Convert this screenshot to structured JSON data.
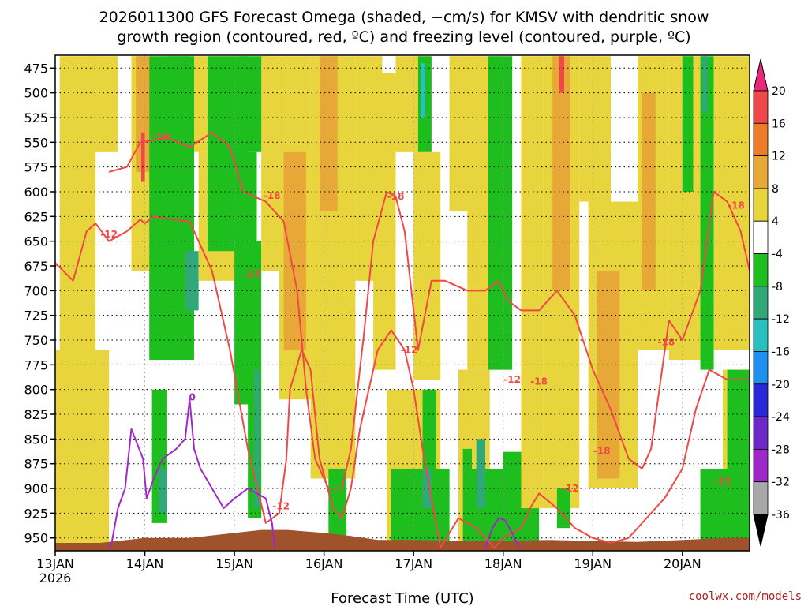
{
  "chart_data": {
    "type": "heatmap",
    "title_lines": [
      "2026011300 GFS Forecast Omega (shaded, −cm/s) for KMSV with dendritic snow",
      "growth region (contoured, red, ºC) and freezing level (contoured, purple, ºC)"
    ],
    "xlabel": "Forecast Time (UTC)",
    "credit": "coolwx.com/models",
    "x_start_label": "13JAN",
    "x_year_label": "2026",
    "x_ticks": [
      {
        "day": 0,
        "label": ""
      },
      {
        "day": 1,
        "label": "14JAN"
      },
      {
        "day": 2,
        "label": "15JAN"
      },
      {
        "day": 3,
        "label": "16JAN"
      },
      {
        "day": 4,
        "label": "17JAN"
      },
      {
        "day": 5,
        "label": "18JAN"
      },
      {
        "day": 6,
        "label": "19JAN"
      },
      {
        "day": 7,
        "label": "20JAN"
      }
    ],
    "xlim_days": [
      0,
      7.75
    ],
    "y_ticks": [
      475,
      500,
      525,
      550,
      575,
      600,
      625,
      650,
      675,
      700,
      725,
      750,
      775,
      800,
      825,
      850,
      875,
      900,
      925,
      950
    ],
    "ylim": [
      963,
      462
    ],
    "colorbar": {
      "labels": [
        20,
        16,
        12,
        8,
        4,
        -4,
        -8,
        -12,
        -16,
        -20,
        -24,
        -28,
        -32,
        -36
      ],
      "colors": [
        "#e8287a",
        "#f04848",
        "#ee7c28",
        "#e8a838",
        "#e8d43c",
        "#ffffff",
        "#1ebe1e",
        "#30a878",
        "#28c0c0",
        "#1e90f0",
        "#2828d8",
        "#6e28c8",
        "#a028c8",
        "#a8a8a8",
        "#000000"
      ]
    },
    "omega_bands": [
      {
        "d0": 0.05,
        "d1": 0.45,
        "p0": 463,
        "p1": 960,
        "v": 4
      },
      {
        "d0": 0.35,
        "d1": 0.7,
        "p0": 463,
        "p1": 560,
        "v": 4
      },
      {
        "d0": 0.85,
        "d1": 1.1,
        "p0": 463,
        "p1": 680,
        "v": 4
      },
      {
        "d0": 0.9,
        "d1": 1.05,
        "p0": 463,
        "p1": 580,
        "v": 10
      },
      {
        "d0": 0.96,
        "d1": 1.0,
        "p0": 540,
        "p1": 590,
        "v": 16
      },
      {
        "d0": 1.05,
        "d1": 1.45,
        "p0": 600,
        "p1": 720,
        "v": 4
      },
      {
        "d0": 0.0,
        "d1": 0.6,
        "p0": 760,
        "p1": 960,
        "v": 4
      },
      {
        "d0": 1.05,
        "d1": 1.55,
        "p0": 463,
        "p1": 770,
        "v": -6
      },
      {
        "d0": 1.25,
        "d1": 1.5,
        "p0": 463,
        "p1": 600,
        "v": -6
      },
      {
        "d0": 1.08,
        "d1": 1.25,
        "p0": 800,
        "p1": 935,
        "v": -6
      },
      {
        "d0": 1.15,
        "d1": 1.25,
        "p0": 880,
        "p1": 925,
        "v": -10
      },
      {
        "d0": 1.45,
        "d1": 1.6,
        "p0": 660,
        "p1": 720,
        "v": -10
      },
      {
        "d0": 1.55,
        "d1": 2.0,
        "p0": 463,
        "p1": 560,
        "v": 4
      },
      {
        "d0": 1.6,
        "d1": 2.1,
        "p0": 560,
        "p1": 690,
        "v": 4
      },
      {
        "d0": 1.7,
        "d1": 2.15,
        "p0": 463,
        "p1": 660,
        "v": -6
      },
      {
        "d0": 2.0,
        "d1": 2.25,
        "p0": 560,
        "p1": 815,
        "v": -6
      },
      {
        "d0": 2.05,
        "d1": 2.35,
        "p0": 463,
        "p1": 560,
        "v": -6
      },
      {
        "d0": 2.15,
        "d1": 2.3,
        "p0": 650,
        "p1": 930,
        "v": -6
      },
      {
        "d0": 2.22,
        "d1": 2.28,
        "p0": 780,
        "p1": 920,
        "v": -10
      },
      {
        "d0": 2.3,
        "d1": 2.5,
        "p0": 463,
        "p1": 680,
        "v": 4
      },
      {
        "d0": 2.5,
        "d1": 2.85,
        "p0": 463,
        "p1": 810,
        "v": 4
      },
      {
        "d0": 2.55,
        "d1": 2.8,
        "p0": 560,
        "p1": 760,
        "v": 8
      },
      {
        "d0": 2.85,
        "d1": 3.35,
        "p0": 463,
        "p1": 890,
        "v": 4
      },
      {
        "d0": 2.95,
        "d1": 3.15,
        "p0": 463,
        "p1": 620,
        "v": 8
      },
      {
        "d0": 3.35,
        "d1": 3.65,
        "p0": 463,
        "p1": 690,
        "v": 4
      },
      {
        "d0": 3.55,
        "d1": 3.8,
        "p0": 480,
        "p1": 780,
        "v": 4
      },
      {
        "d0": 3.8,
        "d1": 4.1,
        "p0": 463,
        "p1": 560,
        "v": 4
      },
      {
        "d0": 4.05,
        "d1": 4.2,
        "p0": 463,
        "p1": 560,
        "v": -6
      },
      {
        "d0": 4.08,
        "d1": 4.13,
        "p0": 470,
        "p1": 525,
        "v": -16
      },
      {
        "d0": 4.0,
        "d1": 4.3,
        "p0": 560,
        "p1": 790,
        "v": 4
      },
      {
        "d0": 3.05,
        "d1": 3.25,
        "p0": 880,
        "p1": 960,
        "v": -6
      },
      {
        "d0": 3.7,
        "d1": 4.3,
        "p0": 800,
        "p1": 960,
        "v": 4
      },
      {
        "d0": 3.75,
        "d1": 4.4,
        "p0": 880,
        "p1": 960,
        "v": -6
      },
      {
        "d0": 4.1,
        "d1": 4.2,
        "p0": 860,
        "p1": 920,
        "v": -10
      },
      {
        "d0": 4.1,
        "d1": 4.25,
        "p0": 800,
        "p1": 880,
        "v": -6
      },
      {
        "d0": 4.4,
        "d1": 4.95,
        "p0": 463,
        "p1": 620,
        "v": 4
      },
      {
        "d0": 4.6,
        "d1": 5.0,
        "p0": 620,
        "p1": 780,
        "v": 4
      },
      {
        "d0": 4.5,
        "d1": 4.85,
        "p0": 780,
        "p1": 960,
        "v": 4
      },
      {
        "d0": 4.55,
        "d1": 4.65,
        "p0": 860,
        "p1": 960,
        "v": -6
      },
      {
        "d0": 4.6,
        "d1": 5.0,
        "p0": 880,
        "p1": 960,
        "v": -6
      },
      {
        "d0": 4.7,
        "d1": 4.8,
        "p0": 850,
        "p1": 920,
        "v": -12
      },
      {
        "d0": 4.83,
        "d1": 5.1,
        "p0": 463,
        "p1": 780,
        "v": -6
      },
      {
        "d0": 5.0,
        "d1": 5.4,
        "p0": 863,
        "p1": 960,
        "v": -6
      },
      {
        "d0": 5.2,
        "d1": 5.45,
        "p0": 463,
        "p1": 920,
        "v": 4
      },
      {
        "d0": 5.45,
        "d1": 5.85,
        "p0": 463,
        "p1": 920,
        "v": 4
      },
      {
        "d0": 5.55,
        "d1": 5.75,
        "p0": 463,
        "p1": 700,
        "v": 10
      },
      {
        "d0": 5.62,
        "d1": 5.68,
        "p0": 463,
        "p1": 500,
        "v": 16
      },
      {
        "d0": 5.6,
        "d1": 5.75,
        "p0": 900,
        "p1": 940,
        "v": -6
      },
      {
        "d0": 5.85,
        "d1": 6.2,
        "p0": 463,
        "p1": 610,
        "v": 4
      },
      {
        "d0": 5.95,
        "d1": 6.5,
        "p0": 610,
        "p1": 900,
        "v": 4
      },
      {
        "d0": 6.05,
        "d1": 6.3,
        "p0": 680,
        "p1": 890,
        "v": 8
      },
      {
        "d0": 6.5,
        "d1": 6.85,
        "p0": 463,
        "p1": 760,
        "v": 4
      },
      {
        "d0": 6.55,
        "d1": 6.7,
        "p0": 500,
        "p1": 700,
        "v": 8
      },
      {
        "d0": 6.85,
        "d1": 7.25,
        "p0": 463,
        "p1": 770,
        "v": 4
      },
      {
        "d0": 7.0,
        "d1": 7.12,
        "p0": 463,
        "p1": 600,
        "v": -6
      },
      {
        "d0": 7.2,
        "d1": 7.35,
        "p0": 463,
        "p1": 780,
        "v": -6
      },
      {
        "d0": 7.22,
        "d1": 7.28,
        "p0": 463,
        "p1": 520,
        "v": -12
      },
      {
        "d0": 7.35,
        "d1": 7.75,
        "p0": 463,
        "p1": 760,
        "v": 4
      },
      {
        "d0": 7.45,
        "d1": 7.75,
        "p0": 780,
        "p1": 960,
        "v": 4
      },
      {
        "d0": 7.2,
        "d1": 7.75,
        "p0": 880,
        "p1": 960,
        "v": -6
      },
      {
        "d0": 7.5,
        "d1": 7.75,
        "p0": 780,
        "p1": 890,
        "v": -6
      }
    ],
    "contours": [
      {
        "name": "-12",
        "color": "#f04848",
        "x": [
          0,
          0.2,
          0.35,
          0.45,
          0.6,
          0.8,
          0.95,
          1.0,
          1.1,
          1.3,
          1.5,
          1.75,
          1.95,
          2.15,
          2.35,
          2.5,
          2.58,
          2.62,
          2.75,
          2.85,
          2.95,
          3.1,
          3.2,
          3.3,
          3.4,
          3.6,
          3.75,
          3.9,
          4.0,
          4.1,
          4.3,
          4.5,
          4.7,
          4.9,
          5.0,
          5.2,
          5.3,
          5.4,
          5.6,
          5.8,
          6.0,
          6.2,
          6.4,
          6.6,
          6.8,
          7.0,
          7.15,
          7.3,
          7.5,
          7.75
        ],
        "p": [
          672,
          690,
          640,
          632,
          650,
          640,
          628,
          632,
          625,
          628,
          630,
          680,
          760,
          860,
          935,
          925,
          870,
          800,
          760,
          780,
          870,
          920,
          930,
          900,
          840,
          760,
          740,
          760,
          800,
          860,
          960,
          930,
          940,
          960,
          950,
          940,
          920,
          905,
          920,
          940,
          950,
          955,
          950,
          930,
          910,
          880,
          820,
          780,
          790,
          790
        ]
      },
      {
        "name": "-18",
        "color": "#f04848",
        "x": [
          0.6,
          0.8,
          0.95,
          1.1,
          1.25,
          1.5,
          1.75,
          1.95,
          2.1,
          2.35,
          2.55,
          2.7,
          2.8,
          2.9,
          3.05,
          3.2,
          3.3,
          3.45,
          3.55,
          3.7,
          3.8,
          3.9,
          4.0,
          4.05,
          4.2,
          4.35,
          4.6,
          4.8,
          4.95,
          5.05,
          5.2,
          5.4,
          5.6,
          5.8,
          6.0,
          6.2,
          6.4,
          6.55,
          6.65,
          6.85,
          7.0,
          7.2,
          7.35,
          7.5,
          7.65,
          7.75
        ],
        "p": [
          580,
          575,
          550,
          548,
          545,
          555,
          540,
          555,
          600,
          610,
          630,
          700,
          800,
          870,
          900,
          900,
          860,
          740,
          650,
          600,
          605,
          640,
          720,
          760,
          690,
          690,
          700,
          700,
          690,
          710,
          720,
          720,
          700,
          725,
          780,
          820,
          870,
          880,
          860,
          730,
          750,
          700,
          600,
          610,
          640,
          680
        ]
      }
    ],
    "contour_labels": [
      {
        "text": "-12",
        "day": 0.6,
        "p": 643,
        "color": "#f04848"
      },
      {
        "text": "-18",
        "day": 1.18,
        "p": 545,
        "color": "#f04848"
      },
      {
        "text": "-12",
        "day": 2.2,
        "p": 683,
        "color": "#f04848"
      },
      {
        "text": "-18",
        "day": 2.42,
        "p": 604,
        "color": "#f04848"
      },
      {
        "text": "-12",
        "day": 2.52,
        "p": 918,
        "color": "#f04848"
      },
      {
        "text": "-18",
        "day": 3.8,
        "p": 605,
        "color": "#f04848"
      },
      {
        "text": "-12",
        "day": 3.95,
        "p": 760,
        "color": "#f04848"
      },
      {
        "text": "-12",
        "day": 5.1,
        "p": 790,
        "color": "#f04848"
      },
      {
        "text": "-18",
        "day": 5.4,
        "p": 792,
        "color": "#f04848"
      },
      {
        "text": "-12",
        "day": 5.75,
        "p": 900,
        "color": "#f04848"
      },
      {
        "text": "-18",
        "day": 6.1,
        "p": 862,
        "color": "#f04848"
      },
      {
        "text": "-18",
        "day": 6.82,
        "p": 752,
        "color": "#f04848"
      },
      {
        "text": "-18",
        "day": 7.6,
        "p": 614,
        "color": "#f04848"
      },
      {
        "text": "-12",
        "day": 7.45,
        "p": 893,
        "color": "#f04848"
      },
      {
        "text": "0",
        "day": 1.53,
        "p": 808,
        "color": "#a028c8"
      }
    ],
    "freezing_level": [
      {
        "name": "0",
        "color": "#a028c8",
        "x": [
          0.62,
          0.7,
          0.78,
          0.85,
          0.98,
          1.02,
          1.1,
          1.2,
          1.35,
          1.45,
          1.5,
          1.55,
          1.62,
          1.75,
          1.88,
          2.0,
          2.15,
          2.25,
          2.35,
          2.42,
          2.45
        ],
        "p": [
          960,
          920,
          900,
          840,
          870,
          910,
          890,
          870,
          860,
          850,
          810,
          860,
          880,
          900,
          920,
          910,
          900,
          905,
          910,
          935,
          960
        ]
      },
      {
        "name": "0",
        "color": "#a028c8",
        "x": [
          4.8,
          4.88,
          4.95,
          5.02,
          5.1,
          5.18
        ],
        "p": [
          960,
          940,
          930,
          932,
          945,
          960
        ]
      }
    ],
    "terrain": {
      "color": "#a0522d",
      "x": [
        0,
        0.5,
        1.0,
        1.5,
        2.0,
        2.3,
        2.6,
        3.0,
        3.3,
        3.6,
        4.0,
        4.5,
        5.0,
        5.5,
        6.0,
        6.5,
        7.0,
        7.5,
        7.75
      ],
      "p": [
        955,
        955,
        950,
        950,
        945,
        942,
        942,
        945,
        948,
        952,
        952,
        953,
        953,
        952,
        953,
        954,
        952,
        950,
        950
      ]
    }
  }
}
